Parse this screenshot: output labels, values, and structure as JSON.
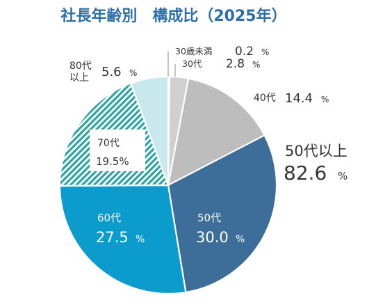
{
  "chart_data": {
    "type": "pie",
    "title": "社長年齢別　構成比（2025年）",
    "slices": [
      {
        "label": "30歳未満",
        "value": 0.2,
        "value_text": "0.2",
        "unit": "%",
        "color": "#ffffff",
        "pattern": "none"
      },
      {
        "label": "30代",
        "value": 2.8,
        "value_text": "2.8",
        "unit": "%",
        "color": "#d0d0d0",
        "pattern": "none"
      },
      {
        "label": "40代",
        "value": 14.4,
        "value_text": "14.4",
        "unit": "%",
        "color": "#bdbdbd",
        "pattern": "none"
      },
      {
        "label": "50代",
        "value": 30.0,
        "value_text": "30.0",
        "unit": "%",
        "color": "#3d6d99",
        "pattern": "none"
      },
      {
        "label": "60代",
        "value": 27.5,
        "value_text": "27.5",
        "unit": "%",
        "color": "#0c9bcd",
        "pattern": "none"
      },
      {
        "label": "70代",
        "value": 19.5,
        "value_text": "19.5",
        "unit": "%",
        "color": "#2aa3a3",
        "pattern": "hatch"
      },
      {
        "label": "80代以上",
        "value": 5.6,
        "value_text": "5.6",
        "unit": "%",
        "color": "#c8e8ee",
        "pattern": "none"
      }
    ],
    "callout": {
      "label": "50代以上",
      "value": 82.6,
      "value_text": "82.6",
      "unit": "%"
    },
    "legend": "none"
  }
}
